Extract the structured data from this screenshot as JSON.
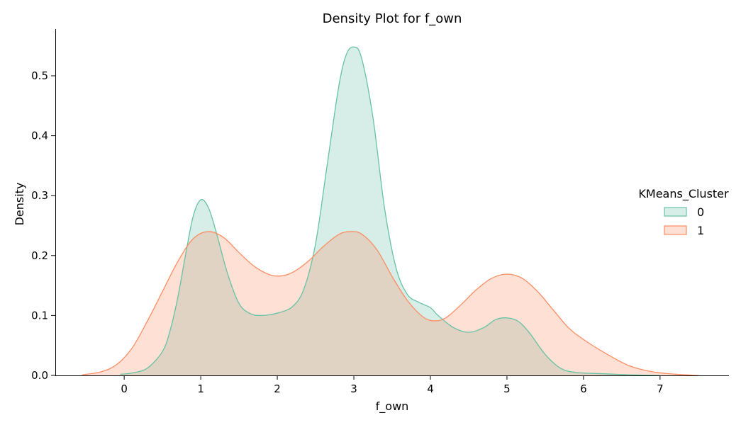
{
  "chart_data": {
    "type": "area",
    "title": "Density Plot for f_own",
    "xlabel": "f_own",
    "ylabel": "Density",
    "xlim": [
      -0.9,
      7.9
    ],
    "ylim": [
      0,
      0.578
    ],
    "x_ticks": [
      0,
      1,
      2,
      3,
      4,
      5,
      6,
      7
    ],
    "y_ticks": [
      0.0,
      0.1,
      0.2,
      0.3,
      0.4,
      0.5
    ],
    "y_tick_labels": [
      "0.0",
      "0.1",
      "0.2",
      "0.3",
      "0.4",
      "0.5"
    ],
    "grid": false,
    "legend": {
      "title": "KMeans_Cluster",
      "placement": "right"
    },
    "series": [
      {
        "name": "0",
        "stroke": "#66c2a5",
        "fill": "#66c2a5",
        "fill_opacity": 0.27,
        "points": [
          [
            -0.05,
            0.002
          ],
          [
            0.1,
            0.004
          ],
          [
            0.3,
            0.012
          ],
          [
            0.5,
            0.04
          ],
          [
            0.6,
            0.075
          ],
          [
            0.7,
            0.13
          ],
          [
            0.8,
            0.2
          ],
          [
            0.9,
            0.265
          ],
          [
            1.0,
            0.293
          ],
          [
            1.1,
            0.28
          ],
          [
            1.2,
            0.24
          ],
          [
            1.35,
            0.17
          ],
          [
            1.5,
            0.12
          ],
          [
            1.65,
            0.103
          ],
          [
            1.8,
            0.1
          ],
          [
            2.0,
            0.104
          ],
          [
            2.2,
            0.115
          ],
          [
            2.35,
            0.145
          ],
          [
            2.5,
            0.22
          ],
          [
            2.65,
            0.35
          ],
          [
            2.8,
            0.48
          ],
          [
            2.9,
            0.535
          ],
          [
            3.0,
            0.548
          ],
          [
            3.1,
            0.53
          ],
          [
            3.25,
            0.43
          ],
          [
            3.4,
            0.28
          ],
          [
            3.55,
            0.18
          ],
          [
            3.7,
            0.135
          ],
          [
            3.85,
            0.122
          ],
          [
            4.0,
            0.113
          ],
          [
            4.1,
            0.1
          ],
          [
            4.3,
            0.08
          ],
          [
            4.5,
            0.072
          ],
          [
            4.7,
            0.08
          ],
          [
            4.85,
            0.093
          ],
          [
            5.0,
            0.096
          ],
          [
            5.15,
            0.09
          ],
          [
            5.3,
            0.07
          ],
          [
            5.5,
            0.035
          ],
          [
            5.7,
            0.012
          ],
          [
            5.9,
            0.005
          ],
          [
            6.2,
            0.003
          ],
          [
            6.6,
            0.001
          ],
          [
            7.0,
            0.0
          ]
        ]
      },
      {
        "name": "1",
        "stroke": "#fc8d62",
        "fill": "#fc8d62",
        "fill_opacity": 0.27,
        "points": [
          [
            -0.55,
            0.001
          ],
          [
            -0.3,
            0.006
          ],
          [
            -0.1,
            0.018
          ],
          [
            0.1,
            0.045
          ],
          [
            0.3,
            0.09
          ],
          [
            0.5,
            0.14
          ],
          [
            0.7,
            0.19
          ],
          [
            0.9,
            0.228
          ],
          [
            1.1,
            0.24
          ],
          [
            1.3,
            0.23
          ],
          [
            1.5,
            0.205
          ],
          [
            1.7,
            0.182
          ],
          [
            1.9,
            0.168
          ],
          [
            2.05,
            0.166
          ],
          [
            2.2,
            0.172
          ],
          [
            2.4,
            0.19
          ],
          [
            2.6,
            0.215
          ],
          [
            2.8,
            0.235
          ],
          [
            2.95,
            0.24
          ],
          [
            3.1,
            0.236
          ],
          [
            3.3,
            0.21
          ],
          [
            3.5,
            0.165
          ],
          [
            3.7,
            0.125
          ],
          [
            3.9,
            0.098
          ],
          [
            4.05,
            0.091
          ],
          [
            4.2,
            0.096
          ],
          [
            4.4,
            0.118
          ],
          [
            4.6,
            0.143
          ],
          [
            4.8,
            0.162
          ],
          [
            5.0,
            0.169
          ],
          [
            5.2,
            0.162
          ],
          [
            5.4,
            0.14
          ],
          [
            5.6,
            0.11
          ],
          [
            5.8,
            0.08
          ],
          [
            6.0,
            0.06
          ],
          [
            6.3,
            0.036
          ],
          [
            6.6,
            0.016
          ],
          [
            6.9,
            0.006
          ],
          [
            7.2,
            0.002
          ],
          [
            7.5,
            0.0
          ]
        ]
      }
    ]
  }
}
